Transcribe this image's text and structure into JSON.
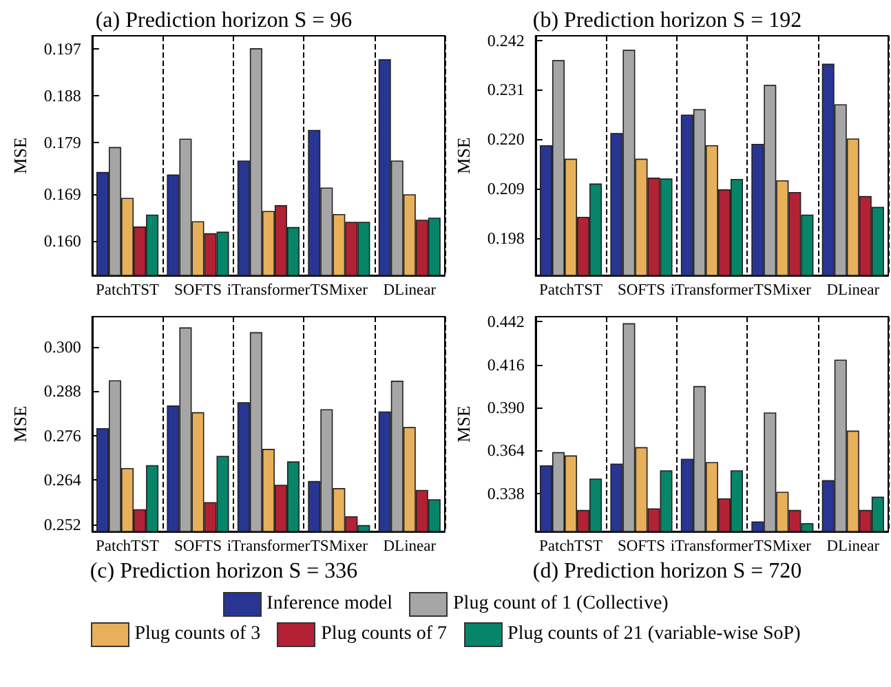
{
  "chart_data": [
    {
      "type": "bar",
      "title": "(a) Prediction horizon S = 96",
      "ylabel": "MSE",
      "categories": [
        "PatchTST",
        "SOFTS",
        "iTransformer",
        "TSMixer",
        "DLinear"
      ],
      "series": [
        {
          "name": "Inference model",
          "color": "#283593",
          "values": [
            0.1733,
            0.1728,
            0.1755,
            0.1814,
            0.195
          ]
        },
        {
          "name": "Plug count of 1 (Collective)",
          "color": "#a6a6a6",
          "values": [
            0.1781,
            0.1797,
            0.1971,
            0.1703,
            0.1755
          ]
        },
        {
          "name": "Plug counts of 3",
          "color": "#e8b05a",
          "values": [
            0.1683,
            0.1638,
            0.1658,
            0.1652,
            0.169
          ]
        },
        {
          "name": "Plug counts of 7",
          "color": "#b22234",
          "values": [
            0.1628,
            0.1615,
            0.1669,
            0.1637,
            0.1641
          ]
        },
        {
          "name": "Plug counts of 21 (variable-wise SoP)",
          "color": "#078568",
          "values": [
            0.1651,
            0.1618,
            0.1627,
            0.1637,
            0.1645
          ]
        }
      ],
      "ylim": [
        0.1534,
        0.1995
      ],
      "yticks": [
        {
          "value": 0.16,
          "label": "0.160"
        },
        {
          "value": 0.169,
          "label": "0.169"
        },
        {
          "value": 0.179,
          "label": "0.179"
        },
        {
          "value": 0.188,
          "label": "0.188"
        },
        {
          "value": 0.197,
          "label": "0.197"
        }
      ],
      "grid": "x",
      "legend": "bottom"
    },
    {
      "type": "bar",
      "title": "(b) Prediction horizon S = 192",
      "ylabel": "MSE",
      "categories": [
        "PatchTST",
        "SOFTS",
        "iTransformer",
        "TSMixer",
        "DLinear"
      ],
      "series": [
        {
          "color": "#283593",
          "values": [
            0.2187,
            0.2214,
            0.2255,
            0.219,
            0.2368
          ]
        },
        {
          "color": "#a6a6a6",
          "values": [
            0.2376,
            0.2399,
            0.2267,
            0.2321,
            0.2278
          ]
        },
        {
          "color": "#e8b05a",
          "values": [
            0.2157,
            0.2157,
            0.2187,
            0.2109,
            0.2202
          ]
        },
        {
          "color": "#b22234",
          "values": [
            0.2028,
            0.2115,
            0.2089,
            0.2083,
            0.2074
          ]
        },
        {
          "color": "#078568",
          "values": [
            0.2102,
            0.2113,
            0.2112,
            0.2033,
            0.205
          ]
        }
      ],
      "ylim": [
        0.1898,
        0.243
      ],
      "yticks": [
        {
          "value": 0.198,
          "label": "0.198"
        },
        {
          "value": 0.209,
          "label": "0.209"
        },
        {
          "value": 0.22,
          "label": "0.220"
        },
        {
          "value": 0.231,
          "label": "0.231"
        },
        {
          "value": 0.242,
          "label": "0.242"
        }
      ],
      "grid": "x"
    },
    {
      "type": "bar",
      "title": "(c) Prediction horizon S = 336",
      "ylabel": "MSE",
      "categories": [
        "PatchTST",
        "SOFTS",
        "iTransformer",
        "TSMixer",
        "DLinear"
      ],
      "series": [
        {
          "color": "#283593",
          "values": [
            0.278,
            0.2841,
            0.285,
            0.2637,
            0.2825
          ]
        },
        {
          "color": "#a6a6a6",
          "values": [
            0.2909,
            0.3052,
            0.3039,
            0.2831,
            0.2908
          ]
        },
        {
          "color": "#e8b05a",
          "values": [
            0.2672,
            0.2823,
            0.2724,
            0.2618,
            0.2783
          ]
        },
        {
          "color": "#b22234",
          "values": [
            0.2561,
            0.258,
            0.2627,
            0.2542,
            0.2613
          ]
        },
        {
          "color": "#078568",
          "values": [
            0.268,
            0.2705,
            0.269,
            0.2518,
            0.2588
          ]
        }
      ],
      "ylim": [
        0.2501,
        0.3081
      ],
      "yticks": [
        {
          "value": 0.252,
          "label": "0.252"
        },
        {
          "value": 0.264,
          "label": "0.264"
        },
        {
          "value": 0.276,
          "label": "0.276"
        },
        {
          "value": 0.288,
          "label": "0.288"
        },
        {
          "value": 0.3,
          "label": "0.300"
        }
      ],
      "grid": "x"
    },
    {
      "type": "bar",
      "title": "(d) Prediction horizon S = 720",
      "ylabel": "MSE",
      "categories": [
        "PatchTST",
        "SOFTS",
        "iTransformer",
        "TSMixer",
        "DLinear"
      ],
      "series": [
        {
          "color": "#283593",
          "values": [
            0.355,
            0.356,
            0.359,
            0.321,
            0.346
          ]
        },
        {
          "color": "#a6a6a6",
          "values": [
            0.363,
            0.441,
            0.403,
            0.387,
            0.419
          ]
        },
        {
          "color": "#e8b05a",
          "values": [
            0.361,
            0.366,
            0.357,
            0.339,
            0.376
          ]
        },
        {
          "color": "#b22234",
          "values": [
            0.328,
            0.329,
            0.335,
            0.328,
            0.328
          ]
        },
        {
          "color": "#078568",
          "values": [
            0.347,
            0.352,
            0.352,
            0.32,
            0.336
          ]
        }
      ],
      "ylim": [
        0.315,
        0.445
      ],
      "yticks": [
        {
          "value": 0.338,
          "label": "0.338"
        },
        {
          "value": 0.364,
          "label": "0.364"
        },
        {
          "value": 0.39,
          "label": "0.390"
        },
        {
          "value": 0.416,
          "label": "0.416"
        },
        {
          "value": 0.442,
          "label": "0.442"
        }
      ],
      "grid": "x"
    }
  ]
}
